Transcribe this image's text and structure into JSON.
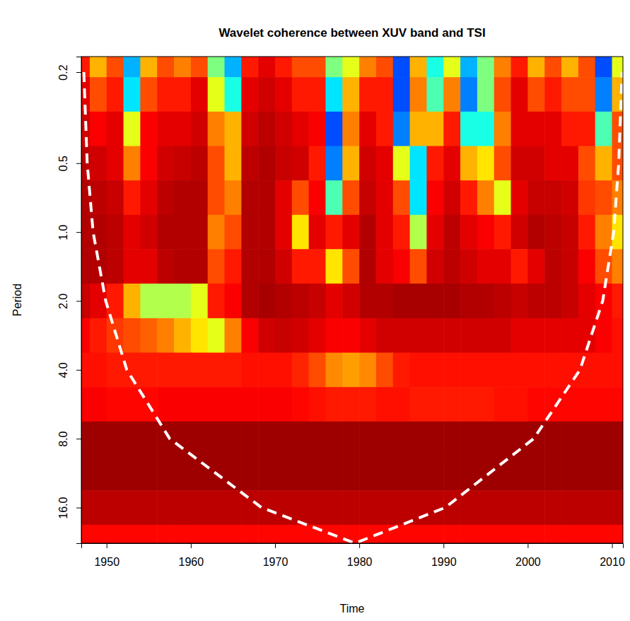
{
  "chart_data": {
    "type": "heatmap",
    "title": "Wavelet coherence between XUV band and TSI",
    "x_label": "Time",
    "y_label": "Period",
    "log": "y",
    "xlim": [
      1947,
      2011.3
    ],
    "xticks": [
      1950,
      1960,
      1970,
      1980,
      1990,
      2000,
      2010
    ],
    "ylim": [
      0.171,
      22.9
    ],
    "yticks": [
      0.2,
      0.5,
      {
        "value": 1,
        "label": "1.0"
      },
      {
        "value": 2,
        "label": "2.0"
      },
      {
        "value": 4,
        "label": "4.0"
      },
      {
        "value": 8,
        "label": "8.0"
      },
      {
        "value": 16,
        "label": "16.0"
      }
    ],
    "zlim": [
      0,
      1
    ],
    "x": [
      1947,
      1949,
      1951,
      1953,
      1955,
      1957,
      1959,
      1961,
      1963,
      1965,
      1967,
      1969,
      1971,
      1973,
      1975,
      1977,
      1979,
      1981,
      1983,
      1985,
      1987,
      1989,
      1991,
      1993,
      1995,
      1997,
      1999,
      2001,
      2003,
      2005,
      2007,
      2009,
      2011
    ],
    "y": [
      0.177,
      0.25,
      0.354,
      0.5,
      0.707,
      1,
      1.41,
      2,
      2.83,
      4,
      5.66,
      8,
      11.3,
      16,
      22.6
    ],
    "z": [
      [
        0.85,
        0.7,
        0.8,
        0.3,
        0.7,
        0.8,
        0.75,
        0.8,
        0.5,
        0.3,
        0.85,
        0.9,
        0.85,
        0.8,
        0.8,
        0.5,
        0.6,
        0.75,
        0.8,
        0.2,
        0.7,
        0.4,
        0.6,
        0.3,
        0.5,
        0.75,
        0.85,
        0.7,
        0.8,
        0.7,
        0.8,
        0.2,
        0.6
      ],
      [
        0.9,
        0.8,
        0.85,
        0.35,
        0.8,
        0.85,
        0.85,
        0.9,
        0.6,
        0.4,
        0.9,
        0.92,
        0.9,
        0.85,
        0.85,
        0.35,
        0.7,
        0.85,
        0.85,
        0.2,
        0.75,
        0.45,
        0.75,
        0.25,
        0.5,
        0.8,
        0.9,
        0.8,
        0.85,
        0.8,
        0.8,
        0.25,
        0.7
      ],
      [
        0.92,
        0.88,
        0.9,
        0.6,
        0.88,
        0.9,
        0.9,
        0.92,
        0.75,
        0.7,
        0.92,
        0.94,
        0.92,
        0.9,
        0.88,
        0.2,
        0.75,
        0.9,
        0.85,
        0.25,
        0.7,
        0.7,
        0.85,
        0.4,
        0.4,
        0.75,
        0.9,
        0.9,
        0.9,
        0.85,
        0.85,
        0.45,
        0.8
      ],
      [
        0.94,
        0.92,
        0.9,
        0.75,
        0.88,
        0.92,
        0.93,
        0.94,
        0.8,
        0.7,
        0.94,
        0.95,
        0.93,
        0.92,
        0.85,
        0.25,
        0.7,
        0.92,
        0.9,
        0.6,
        0.35,
        0.85,
        0.9,
        0.7,
        0.65,
        0.8,
        0.92,
        0.92,
        0.9,
        0.9,
        0.8,
        0.7,
        0.8
      ],
      [
        0.95,
        0.94,
        0.93,
        0.85,
        0.9,
        0.94,
        0.95,
        0.95,
        0.8,
        0.75,
        0.95,
        0.95,
        0.9,
        0.8,
        0.88,
        0.45,
        0.8,
        0.93,
        0.9,
        0.8,
        0.35,
        0.88,
        0.92,
        0.85,
        0.75,
        0.6,
        0.9,
        0.93,
        0.93,
        0.92,
        0.82,
        0.8,
        0.75
      ],
      [
        0.95,
        0.95,
        0.94,
        0.9,
        0.92,
        0.95,
        0.95,
        0.95,
        0.75,
        0.8,
        0.95,
        0.95,
        0.9,
        0.65,
        0.9,
        0.85,
        0.9,
        0.95,
        0.9,
        0.85,
        0.55,
        0.9,
        0.94,
        0.9,
        0.88,
        0.85,
        0.92,
        0.95,
        0.94,
        0.93,
        0.85,
        0.75,
        0.65
      ],
      [
        0.95,
        0.95,
        0.94,
        0.9,
        0.9,
        0.94,
        0.95,
        0.95,
        0.8,
        0.85,
        0.95,
        0.95,
        0.92,
        0.85,
        0.85,
        0.65,
        0.8,
        0.95,
        0.9,
        0.88,
        0.8,
        0.92,
        0.94,
        0.92,
        0.9,
        0.9,
        0.85,
        0.9,
        0.94,
        0.93,
        0.88,
        0.8,
        0.75
      ],
      [
        0.93,
        0.9,
        0.85,
        0.7,
        0.55,
        0.55,
        0.55,
        0.6,
        0.85,
        0.88,
        0.95,
        0.96,
        0.95,
        0.94,
        0.93,
        0.9,
        0.92,
        0.95,
        0.95,
        0.96,
        0.96,
        0.96,
        0.96,
        0.95,
        0.95,
        0.94,
        0.93,
        0.94,
        0.94,
        0.93,
        0.9,
        0.88,
        0.85
      ],
      [
        0.88,
        0.85,
        0.82,
        0.8,
        0.78,
        0.75,
        0.7,
        0.65,
        0.6,
        0.75,
        0.88,
        0.92,
        0.93,
        0.92,
        0.9,
        0.88,
        0.88,
        0.9,
        0.92,
        0.92,
        0.92,
        0.92,
        0.92,
        0.92,
        0.92,
        0.92,
        0.9,
        0.9,
        0.9,
        0.9,
        0.9,
        0.88,
        0.86
      ],
      [
        0.86,
        0.86,
        0.85,
        0.85,
        0.85,
        0.85,
        0.85,
        0.85,
        0.85,
        0.85,
        0.86,
        0.86,
        0.86,
        0.84,
        0.8,
        0.74,
        0.72,
        0.74,
        0.8,
        0.85,
        0.86,
        0.86,
        0.86,
        0.86,
        0.86,
        0.86,
        0.86,
        0.86,
        0.86,
        0.86,
        0.86,
        0.86,
        0.86
      ],
      [
        0.88,
        0.88,
        0.87,
        0.87,
        0.87,
        0.88,
        0.88,
        0.88,
        0.88,
        0.88,
        0.88,
        0.88,
        0.88,
        0.87,
        0.86,
        0.85,
        0.85,
        0.85,
        0.86,
        0.86,
        0.85,
        0.85,
        0.85,
        0.85,
        0.85,
        0.86,
        0.86,
        0.87,
        0.87,
        0.87,
        0.87,
        0.87,
        0.87
      ],
      [
        0.97,
        0.97,
        0.97,
        0.97,
        0.97,
        0.97,
        0.97,
        0.97,
        0.97,
        0.97,
        0.97,
        0.97,
        0.97,
        0.97,
        0.97,
        0.97,
        0.97,
        0.97,
        0.97,
        0.97,
        0.97,
        0.97,
        0.97,
        0.97,
        0.97,
        0.97,
        0.97,
        0.97,
        0.97,
        0.97,
        0.97,
        0.97,
        0.97
      ],
      [
        0.97,
        0.97,
        0.97,
        0.97,
        0.97,
        0.97,
        0.97,
        0.97,
        0.97,
        0.97,
        0.97,
        0.97,
        0.97,
        0.97,
        0.97,
        0.97,
        0.97,
        0.97,
        0.97,
        0.97,
        0.97,
        0.97,
        0.97,
        0.97,
        0.97,
        0.97,
        0.97,
        0.97,
        0.97,
        0.97,
        0.97,
        0.97,
        0.97
      ],
      [
        0.94,
        0.94,
        0.94,
        0.94,
        0.94,
        0.94,
        0.94,
        0.94,
        0.94,
        0.94,
        0.94,
        0.94,
        0.94,
        0.94,
        0.94,
        0.94,
        0.94,
        0.94,
        0.94,
        0.94,
        0.94,
        0.94,
        0.94,
        0.94,
        0.94,
        0.94,
        0.94,
        0.94,
        0.94,
        0.94,
        0.94,
        0.94,
        0.94
      ],
      [
        0.87,
        0.87,
        0.87,
        0.87,
        0.87,
        0.87,
        0.87,
        0.87,
        0.87,
        0.87,
        0.87,
        0.87,
        0.87,
        0.87,
        0.87,
        0.87,
        0.87,
        0.87,
        0.87,
        0.87,
        0.87,
        0.87,
        0.87,
        0.87,
        0.87,
        0.87,
        0.87,
        0.87,
        0.87,
        0.87,
        0.87,
        0.87,
        0.87
      ]
    ],
    "coi": {
      "x": [
        1947.3,
        1947.7,
        1948.4,
        1949.9,
        1952.4,
        1957.5,
        1968.4,
        1979.5,
        1990.2,
        2000.7,
        2006.2,
        2008.9,
        2010.2,
        2010.8,
        2011.2
      ],
      "y": [
        0.2,
        0.5,
        1,
        2,
        4,
        8,
        16,
        22.9,
        16,
        8,
        4,
        2,
        1,
        0.5,
        0.2
      ]
    }
  }
}
